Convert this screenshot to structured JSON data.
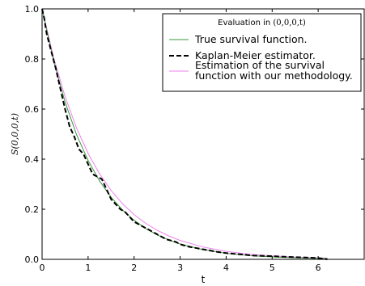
{
  "chart_data": {
    "type": "line",
    "xlabel": "t",
    "ylabel": "S(0,0,0,t)",
    "xlim": [
      0,
      7
    ],
    "ylim": [
      0,
      1
    ],
    "xticks": [
      "0",
      "1",
      "2",
      "3",
      "4",
      "5",
      "6"
    ],
    "yticks": [
      "0.0",
      "0.2",
      "0.4",
      "0.6",
      "0.8",
      "1.0"
    ],
    "grid": false,
    "legend": {
      "placement": "top-right",
      "title_prefix": "Evaluation in ",
      "title_math": "(0,0,0,t)"
    },
    "series": [
      {
        "name": "True survival function.",
        "style": "solid",
        "color": "#3a9a3a",
        "x": [
          0,
          0.25,
          0.5,
          0.75,
          1,
          1.25,
          1.5,
          1.75,
          2,
          2.25,
          2.5,
          2.75,
          3,
          3.5,
          4,
          4.5,
          5,
          5.5,
          6,
          6.2
        ],
        "y": [
          1.0,
          0.7925,
          0.6282,
          0.4979,
          0.3946,
          0.3127,
          0.2479,
          0.1964,
          0.1557,
          0.1234,
          0.0978,
          0.0775,
          0.0614,
          0.0386,
          0.0242,
          0.0152,
          0.0096,
          0.006,
          0.0038,
          0.0032
        ]
      },
      {
        "name": "Kaplan-Meier estimator.",
        "style": "dashed",
        "color": "#000000",
        "x": [
          0,
          0.05,
          0.1,
          0.2,
          0.3,
          0.4,
          0.5,
          0.6,
          0.7,
          0.8,
          0.9,
          1.0,
          1.1,
          1.2,
          1.3,
          1.4,
          1.5,
          1.6,
          1.7,
          1.8,
          1.9,
          2.0,
          2.1,
          2.2,
          2.3,
          2.4,
          2.5,
          2.7,
          2.9,
          3.0,
          3.2,
          3.5,
          3.8,
          4.0,
          4.3,
          4.6,
          5.0,
          5.3,
          5.6,
          6.0,
          6.2
        ],
        "y": [
          1.0,
          0.96,
          0.9,
          0.83,
          0.76,
          0.68,
          0.6,
          0.53,
          0.49,
          0.44,
          0.42,
          0.38,
          0.34,
          0.33,
          0.32,
          0.28,
          0.24,
          0.22,
          0.2,
          0.19,
          0.17,
          0.15,
          0.14,
          0.13,
          0.12,
          0.11,
          0.1,
          0.08,
          0.07,
          0.06,
          0.05,
          0.04,
          0.03,
          0.025,
          0.02,
          0.015,
          0.013,
          0.01,
          0.008,
          0.005,
          0.0
        ]
      },
      {
        "name": "Estimation of the survival function with our methodology.",
        "name_lines": [
          "Estimation of the survival",
          "function with our methodology."
        ],
        "style": "solid",
        "color": "#ee82ee",
        "x": [
          0,
          0.25,
          0.5,
          0.75,
          1,
          1.25,
          1.5,
          1.75,
          2,
          2.25,
          2.5,
          2.75,
          3,
          3.5,
          4,
          4.5,
          5,
          5.5,
          6,
          6.2
        ],
        "y": [
          1.0,
          0.8063,
          0.6501,
          0.5242,
          0.4227,
          0.3408,
          0.2748,
          0.2216,
          0.1786,
          0.144,
          0.1161,
          0.0936,
          0.0755,
          0.0491,
          0.0319,
          0.0207,
          0.0135,
          0.0088,
          0.0057,
          0.0048
        ]
      }
    ]
  }
}
